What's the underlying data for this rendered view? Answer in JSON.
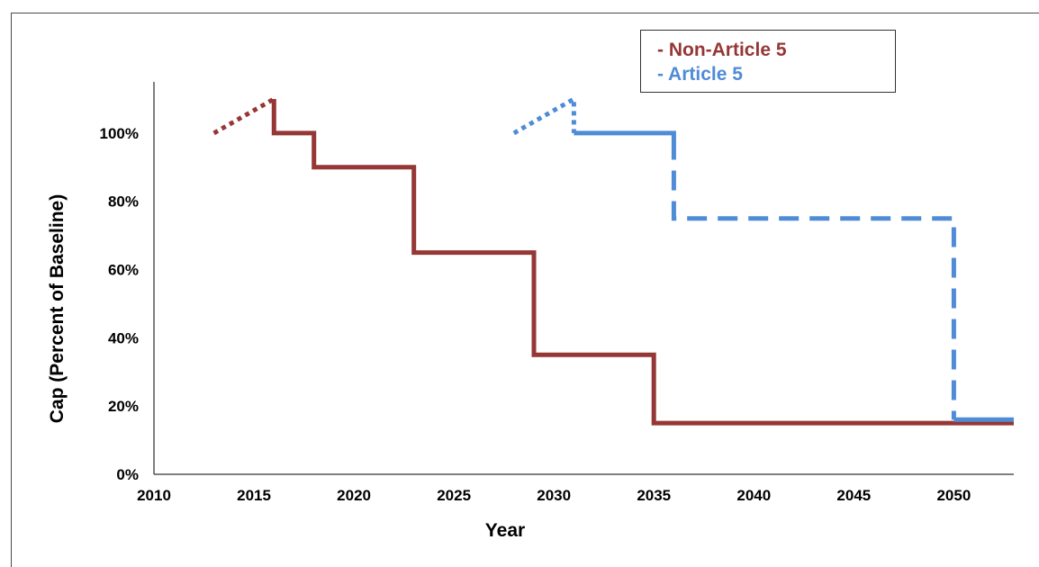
{
  "chart_data": {
    "type": "line",
    "xlabel": "Year",
    "ylabel": "Cap (Percent of Baseline)",
    "xlim": [
      2010,
      2053
    ],
    "ylim": [
      0,
      115
    ],
    "x_ticks": [
      2010,
      2015,
      2020,
      2025,
      2030,
      2035,
      2040,
      2045,
      2050
    ],
    "x_tick_labels": [
      "2010",
      "2015",
      "2020",
      "2025",
      "2030",
      "2035",
      "2040",
      "2045",
      "2050"
    ],
    "y_ticks": [
      0,
      20,
      40,
      60,
      80,
      100
    ],
    "y_tick_labels": [
      "0%",
      "20%",
      "40%",
      "60%",
      "80%",
      "100%"
    ],
    "legend_position": "top-right",
    "legend": [
      "- Non-Article 5",
      "- Article 5"
    ],
    "series": [
      {
        "name": "- Non-Article 5",
        "color": "#953735",
        "baseline_ramp": [
          [
            2013,
            100
          ],
          [
            2016,
            110
          ]
        ],
        "steps": [
          [
            2016,
            110
          ],
          [
            2016,
            100
          ],
          [
            2018,
            100
          ],
          [
            2018,
            90
          ],
          [
            2023,
            90
          ],
          [
            2023,
            65
          ],
          [
            2029,
            65
          ],
          [
            2029,
            35
          ],
          [
            2035,
            35
          ],
          [
            2035,
            15
          ],
          [
            2053,
            15
          ]
        ]
      },
      {
        "name": "- Article 5",
        "color": "#4f8bd6",
        "baseline_ramp": [
          [
            2028,
            100
          ],
          [
            2031,
            110
          ],
          [
            2031,
            100
          ]
        ],
        "steps_solid": [
          [
            2031,
            100
          ],
          [
            2036,
            100
          ],
          [
            2036,
            98
          ]
        ],
        "steps_dashed": [
          [
            2036,
            98
          ],
          [
            2036,
            75
          ],
          [
            2050,
            75
          ],
          [
            2050,
            16
          ]
        ],
        "steps_tail": [
          [
            2050,
            16
          ],
          [
            2053,
            16
          ]
        ]
      }
    ]
  }
}
